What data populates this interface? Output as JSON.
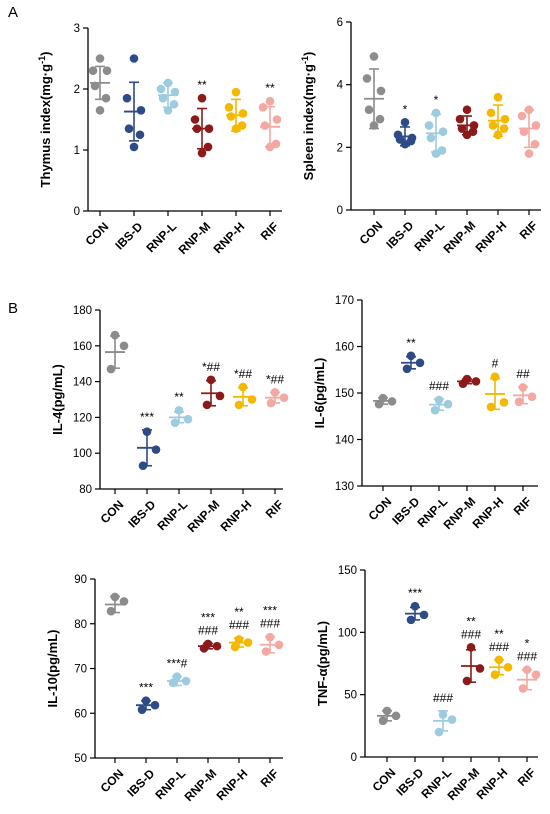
{
  "panel_labels": {
    "a": "A",
    "b": "B"
  },
  "colors": {
    "CON": "#8c8c8c",
    "IBS-D": "#2e4a87",
    "RNP-L": "#9dcbe0",
    "RNP-M": "#8c1a1a",
    "RNP-H": "#f5b800",
    "RIF": "#f3a9a2"
  },
  "chart_data": [
    {
      "id": "thymus",
      "type": "scatter",
      "categories": [
        "CON",
        "IBS-D",
        "RNP-L",
        "RNP-M",
        "RNP-H",
        "RIF"
      ],
      "ylabel": "Thymus index(mg·g",
      "ylabel_sup": "-1",
      "ylabel_end": ")",
      "ylim": [
        0,
        3
      ],
      "yticks": [
        0,
        1,
        2,
        3
      ],
      "means": [
        2.1,
        1.63,
        1.9,
        1.35,
        1.57,
        1.38
      ],
      "sds": [
        0.27,
        0.48,
        0.2,
        0.33,
        0.26,
        0.33
      ],
      "points": [
        [
          2.5,
          2.3,
          2.3,
          2.05,
          1.85,
          1.65
        ],
        [
          2.5,
          1.85,
          1.65,
          1.35,
          1.25,
          1.05
        ],
        [
          2.1,
          2.0,
          1.95,
          1.85,
          1.75,
          1.65
        ],
        [
          1.85,
          1.5,
          1.35,
          1.35,
          1.05,
          0.95
        ],
        [
          1.95,
          1.7,
          1.6,
          1.55,
          1.4,
          1.35
        ],
        [
          1.8,
          1.7,
          1.5,
          1.4,
          1.1,
          1.05
        ]
      ],
      "annotations": [
        "",
        "",
        "",
        "**",
        "",
        "**"
      ]
    },
    {
      "id": "spleen",
      "type": "scatter",
      "categories": [
        "CON",
        "IBS-D",
        "RNP-L",
        "RNP-M",
        "RNP-H",
        "RIF"
      ],
      "ylabel": "Spleen index(mg·g",
      "ylabel_sup": "-1",
      "ylabel_end": ")",
      "ylim": [
        0,
        6
      ],
      "yticks": [
        0,
        2,
        4,
        6
      ],
      "means": [
        3.55,
        2.35,
        2.45,
        2.7,
        2.85,
        2.6
      ],
      "sds": [
        0.95,
        0.3,
        0.6,
        0.3,
        0.5,
        0.6
      ],
      "points": [
        [
          4.9,
          4.2,
          3.8,
          3.2,
          2.9,
          2.7
        ],
        [
          2.8,
          2.4,
          2.3,
          2.25,
          2.2,
          2.1
        ],
        [
          3.1,
          2.7,
          2.5,
          2.3,
          1.9,
          1.8
        ],
        [
          3.2,
          2.9,
          2.7,
          2.6,
          2.5,
          2.4
        ],
        [
          3.6,
          3.1,
          2.9,
          2.7,
          2.6,
          2.4
        ],
        [
          3.2,
          3.0,
          2.7,
          2.5,
          2.1,
          1.8
        ]
      ],
      "annotations": [
        "",
        "*",
        "*",
        "",
        "",
        ""
      ]
    },
    {
      "id": "il4",
      "type": "scatter",
      "categories": [
        "CON",
        "IBS-D",
        "RNP-L",
        "RNP-M",
        "RNP-H",
        "RIF"
      ],
      "ylabel": "IL-4(pg/mL)",
      "ylim": [
        80,
        180
      ],
      "yticks": [
        80,
        100,
        120,
        140,
        160,
        180
      ],
      "means": [
        156.5,
        103,
        120,
        133.5,
        131.5,
        131
      ],
      "sds": [
        9,
        10,
        3,
        7,
        5,
        3
      ],
      "points": [
        [
          166,
          160,
          147
        ],
        [
          112,
          102,
          93
        ],
        [
          124,
          119,
          117
        ],
        [
          141,
          132,
          127
        ],
        [
          137,
          130,
          127
        ],
        [
          134,
          131,
          128
        ]
      ],
      "annotations": [
        "",
        "***",
        "**",
        "*##",
        "*##",
        "*##"
      ]
    },
    {
      "id": "il6",
      "type": "scatter",
      "categories": [
        "CON",
        "IBS-D",
        "RNP-L",
        "RNP-M",
        "RNP-H",
        "RIF"
      ],
      "ylabel": "IL-6(pg/mL)",
      "ylim": [
        130,
        170
      ],
      "yticks": [
        130,
        140,
        150,
        160,
        170
      ],
      "means": [
        148.3,
        156.5,
        147.5,
        152.5,
        149.8,
        149.5
      ],
      "sds": [
        0.7,
        1.3,
        1.2,
        0.5,
        3.3,
        1.8
      ],
      "points": [
        [
          148.9,
          148.2,
          147.6
        ],
        [
          158.0,
          156.5,
          155.2
        ],
        [
          148.5,
          147.6,
          146.3
        ],
        [
          153.0,
          152.5,
          152.0
        ],
        [
          153.5,
          148.0,
          147.0
        ],
        [
          151.2,
          149.2,
          148.1
        ]
      ],
      "annotations": [
        "",
        "**",
        "###",
        "",
        "#",
        "##"
      ]
    },
    {
      "id": "il10",
      "type": "scatter",
      "categories": [
        "CON",
        "IBS-D",
        "RNP-L",
        "RNP-M",
        "RNP-H",
        "RIF"
      ],
      "ylabel": "IL-10(pg/mL)",
      "ylim": [
        50,
        90
      ],
      "yticks": [
        50,
        60,
        70,
        80,
        90
      ],
      "means": [
        84.3,
        61.8,
        67.2,
        75,
        75.8,
        75.3
      ],
      "sds": [
        1.8,
        1,
        1,
        0.6,
        1,
        1.8
      ],
      "points": [
        [
          86,
          85,
          82.8
        ],
        [
          62.8,
          61.8,
          60.8
        ],
        [
          68.2,
          67.2,
          66.8
        ],
        [
          75.5,
          75.0,
          74.5
        ],
        [
          76.5,
          75.8,
          74.8
        ],
        [
          77.0,
          75.3,
          73.8
        ]
      ],
      "annotations": [
        "",
        "***",
        "***#",
        "***\n###",
        "**\n###",
        "***\n###"
      ]
    },
    {
      "id": "tnf",
      "type": "scatter",
      "categories": [
        "CON",
        "IBS-D",
        "RNP-L",
        "RNP-M",
        "RNP-H",
        "RIF"
      ],
      "ylabel": "TNF-α(pg/mL)",
      "ylim": [
        0,
        150
      ],
      "yticks": [
        0,
        50,
        100,
        150
      ],
      "means": [
        33,
        115,
        29,
        73,
        72,
        62
      ],
      "sds": [
        4,
        5,
        8,
        13,
        6,
        8
      ],
      "points": [
        [
          37,
          33,
          29
        ],
        [
          121,
          114,
          110
        ],
        [
          34,
          30,
          20
        ],
        [
          88,
          71,
          61
        ],
        [
          78,
          72,
          66
        ],
        [
          70,
          66,
          55
        ]
      ],
      "annotations": [
        "",
        "***",
        "###",
        "**\n###",
        "**\n###",
        "*\n###"
      ]
    }
  ]
}
